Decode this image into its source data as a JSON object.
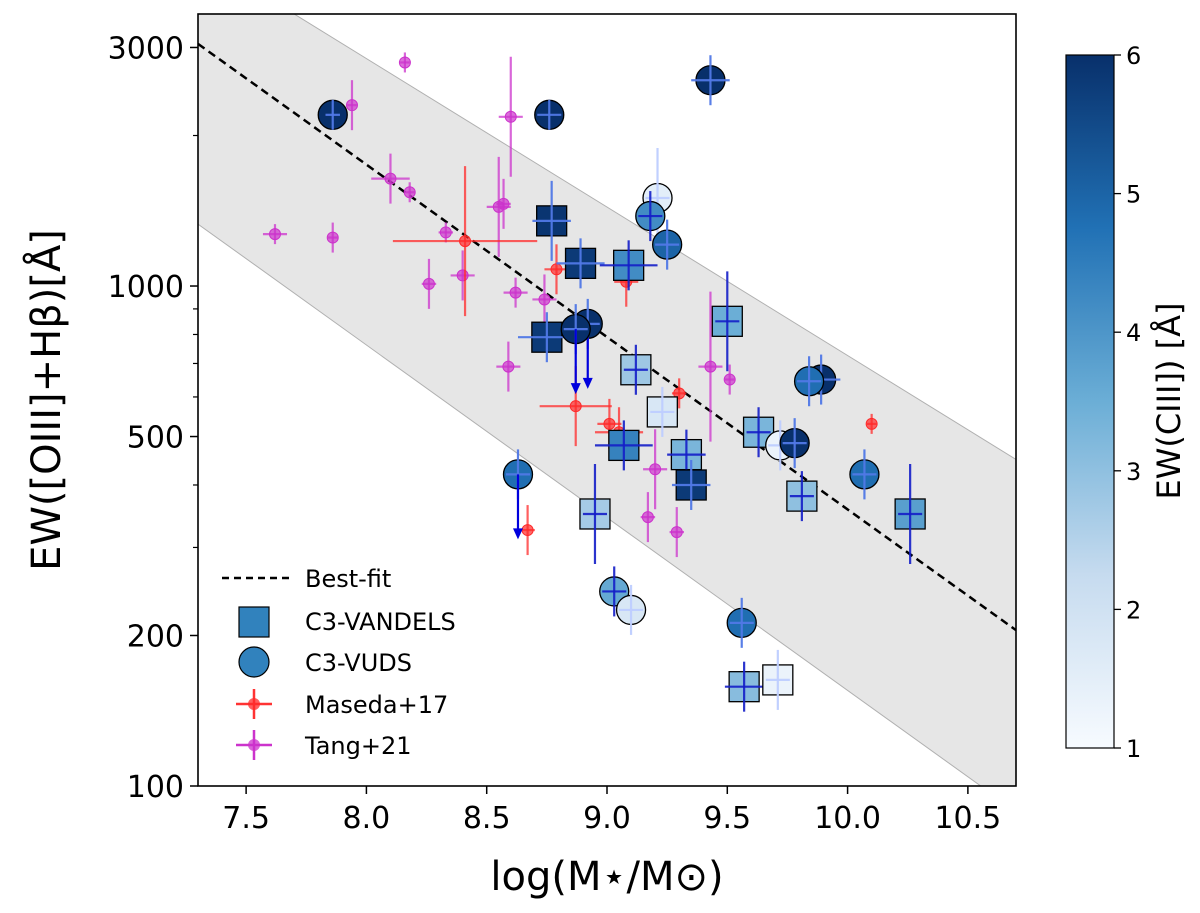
{
  "chart_data": {
    "type": "scatter",
    "xlabel": "log(M⋆/M⊙)",
    "ylabel": "EW([OIII]+Hβ)[Å]",
    "xlim": [
      7.3,
      10.7
    ],
    "ylim": [
      100,
      3500
    ],
    "yscale": "log",
    "x_ticks": [
      7.5,
      8.0,
      8.5,
      9.0,
      9.5,
      10.0,
      10.5
    ],
    "x_tick_labels": [
      "7.5",
      "8.0",
      "8.5",
      "9.0",
      "9.5",
      "10.0",
      "10.5"
    ],
    "y_ticks": [
      100,
      200,
      500,
      1000,
      3000
    ],
    "y_tick_labels": [
      "100",
      "200",
      "500",
      "1000",
      "3000"
    ],
    "colorbar": {
      "label": "EW(CIII]) [Å]",
      "range": [
        1,
        6
      ],
      "ticks": [
        1,
        2,
        3,
        4,
        5,
        6
      ],
      "tick_labels": [
        "1",
        "2",
        "3",
        "4",
        "5",
        "6"
      ],
      "colors": [
        "#f7fbff",
        "#c6dbef",
        "#6baed6",
        "#2171b5",
        "#08306b"
      ]
    },
    "best_fit": {
      "name": "Best-fit",
      "line": [
        [
          7.3,
          3050
        ],
        [
          10.7,
          205
        ]
      ],
      "band_upper": [
        [
          7.3,
          4600
        ],
        [
          10.7,
          450
        ]
      ],
      "band_lower": [
        [
          7.3,
          1330
        ],
        [
          10.7,
          89
        ]
      ]
    },
    "legend": [
      "Best-fit",
      "C3-VANDELS",
      "C3-VUDS",
      "Maseda+17",
      "Tang+21"
    ],
    "legend_position": "lower-left",
    "series": [
      {
        "name": "C3-VANDELS",
        "marker": "square",
        "points": [
          {
            "x": 8.77,
            "y": 1350,
            "c": 5.9,
            "xerr": 0.08,
            "yerr": 0.08
          },
          {
            "x": 8.89,
            "y": 1110,
            "c": 5.8,
            "xerr": 0.1,
            "yerr": 0.05
          },
          {
            "x": 9.09,
            "y": 1100,
            "c": 4.2,
            "xerr": 0.12,
            "yerr": 0.05
          },
          {
            "x": 8.75,
            "y": 790,
            "c": 5.8,
            "xerr": 0.12,
            "yerr": 0.05
          },
          {
            "x": 9.5,
            "y": 850,
            "c": 3.5,
            "xerr": 0.05,
            "yerr": 0.1
          },
          {
            "x": 9.12,
            "y": 680,
            "c": 2.8,
            "xerr": 0.05,
            "yerr": 0.05
          },
          {
            "x": 9.23,
            "y": 560,
            "c": 1.8,
            "xerr": 0.05,
            "yerr": 0.05
          },
          {
            "x": 9.63,
            "y": 510,
            "c": 3.3,
            "xerr": 0.05,
            "yerr": 0.05
          },
          {
            "x": 9.07,
            "y": 480,
            "c": 4.4,
            "xerr": 0.12,
            "yerr": 0.05
          },
          {
            "x": 9.33,
            "y": 460,
            "c": 3.3,
            "xerr": 0.08,
            "yerr": 0.05
          },
          {
            "x": 9.35,
            "y": 400,
            "c": 5.8,
            "xerr": 0.08,
            "yerr": 0.05
          },
          {
            "x": 9.81,
            "y": 380,
            "c": 3.0,
            "xerr": 0.05,
            "yerr": 0.05
          },
          {
            "x": 8.95,
            "y": 350,
            "c": 2.7,
            "xerr": 0.05,
            "yerr": 0.1
          },
          {
            "x": 10.26,
            "y": 350,
            "c": 3.8,
            "xerr": 0.05,
            "yerr": 0.1
          },
          {
            "x": 9.57,
            "y": 158,
            "c": 3.1,
            "xerr": 0.08,
            "yerr": 0.05
          },
          {
            "x": 9.71,
            "y": 163,
            "c": 1.3,
            "xerr": 0.05,
            "yerr": 0.06
          }
        ]
      },
      {
        "name": "C3-VUDS",
        "marker": "circle",
        "points": [
          {
            "x": 7.86,
            "y": 2200,
            "c": 6.0,
            "xerr": 0.03,
            "yerr": 0.03
          },
          {
            "x": 8.76,
            "y": 2200,
            "c": 6.0,
            "xerr": 0.05,
            "yerr": 0.03
          },
          {
            "x": 9.43,
            "y": 2580,
            "c": 6.0,
            "xerr": 0.08,
            "yerr": 0.05
          },
          {
            "x": 9.21,
            "y": 1500,
            "c": 1.5,
            "xerr": 0.05,
            "yerr": 0.1
          },
          {
            "x": 9.18,
            "y": 1380,
            "c": 4.2,
            "xerr": 0.05,
            "yerr": 0.05
          },
          {
            "x": 9.25,
            "y": 1210,
            "c": 5.0,
            "xerr": 0.05,
            "yerr": 0.05
          },
          {
            "x": 8.92,
            "y": 840,
            "c": 6.0,
            "xerr": 0.05,
            "yerr": 0.05,
            "upper_limit": true
          },
          {
            "x": 8.87,
            "y": 820,
            "c": 6.0,
            "xerr": 0.05,
            "yerr": 0.05,
            "upper_limit": true
          },
          {
            "x": 9.89,
            "y": 650,
            "c": 6.0,
            "xerr": 0.08,
            "yerr": 0.05
          },
          {
            "x": 9.84,
            "y": 645,
            "c": 4.8,
            "xerr": 0.05,
            "yerr": 0.05
          },
          {
            "x": 9.72,
            "y": 480,
            "c": 1.3,
            "xerr": 0.05,
            "yerr": 0.05
          },
          {
            "x": 9.78,
            "y": 485,
            "c": 6.0,
            "xerr": 0.05,
            "yerr": 0.05
          },
          {
            "x": 10.07,
            "y": 420,
            "c": 4.8,
            "xerr": 0.05,
            "yerr": 0.05
          },
          {
            "x": 8.63,
            "y": 420,
            "c": 4.8,
            "xerr": 0.05,
            "yerr": 0.05,
            "upper_limit": true
          },
          {
            "x": 9.03,
            "y": 245,
            "c": 3.6,
            "xerr": 0.05,
            "yerr": 0.05
          },
          {
            "x": 9.1,
            "y": 225,
            "c": 1.8,
            "xerr": 0.05,
            "yerr": 0.05
          },
          {
            "x": 9.56,
            "y": 212,
            "c": 4.8,
            "xerr": 0.05,
            "yerr": 0.05
          }
        ]
      },
      {
        "name": "Maseda+17",
        "marker": "small-dot",
        "color": "#ff2a2a",
        "points": [
          {
            "x": 8.41,
            "y": 1230,
            "xerr_lo": 0.3,
            "xerr_hi": 0.3,
            "yerr": 0.15
          },
          {
            "x": 8.79,
            "y": 1080,
            "xerr": 0.05,
            "yerr": 0.05
          },
          {
            "x": 9.08,
            "y": 1020,
            "xerr": 0.05,
            "yerr": 0.05
          },
          {
            "x": 8.87,
            "y": 575,
            "xerr": 0.15,
            "yerr": 0.08
          },
          {
            "x": 9.01,
            "y": 530,
            "xerr": 0.05,
            "yerr": 0.05
          },
          {
            "x": 9.05,
            "y": 510,
            "xerr": 0.1,
            "yerr": 0.05
          },
          {
            "x": 9.3,
            "y": 610,
            "xerr": 0.03,
            "yerr": 0.03
          },
          {
            "x": 10.1,
            "y": 530,
            "xerr": 0.02,
            "yerr": 0.02
          },
          {
            "x": 8.67,
            "y": 325,
            "xerr": 0.03,
            "yerr": 0.05
          }
        ]
      },
      {
        "name": "Tang+21",
        "marker": "small-dot",
        "color": "#cc33cc",
        "points": [
          {
            "x": 8.16,
            "y": 2800,
            "xerr": 0.02,
            "yerr": 0.02
          },
          {
            "x": 7.94,
            "y": 2300,
            "xerr": 0.02,
            "yerr": 0.05
          },
          {
            "x": 8.6,
            "y": 2180,
            "xerr": 0.05,
            "yerr": 0.12
          },
          {
            "x": 8.1,
            "y": 1640,
            "xerr": 0.08,
            "yerr": 0.05
          },
          {
            "x": 8.18,
            "y": 1540,
            "xerr": 0.02,
            "yerr": 0.02
          },
          {
            "x": 8.55,
            "y": 1440,
            "xerr": 0.05,
            "yerr": 0.1
          },
          {
            "x": 8.57,
            "y": 1460,
            "xerr": 0.03,
            "yerr": 0.05
          },
          {
            "x": 7.62,
            "y": 1270,
            "xerr": 0.05,
            "yerr": 0.02
          },
          {
            "x": 7.86,
            "y": 1250,
            "xerr": 0.02,
            "yerr": 0.03
          },
          {
            "x": 8.33,
            "y": 1280,
            "xerr": 0.03,
            "yerr": 0.02
          },
          {
            "x": 8.4,
            "y": 1050,
            "xerr": 0.05,
            "yerr": 0.05
          },
          {
            "x": 8.26,
            "y": 1010,
            "xerr": 0.03,
            "yerr": 0.05
          },
          {
            "x": 8.62,
            "y": 970,
            "xerr": 0.05,
            "yerr": 0.03
          },
          {
            "x": 8.74,
            "y": 940,
            "xerr": 0.05,
            "yerr": 0.05
          },
          {
            "x": 8.59,
            "y": 690,
            "xerr": 0.05,
            "yerr": 0.05
          },
          {
            "x": 9.43,
            "y": 690,
            "xerr": 0.05,
            "yerr": 0.15
          },
          {
            "x": 9.51,
            "y": 650,
            "xerr": 0.02,
            "yerr": 0.03
          },
          {
            "x": 9.2,
            "y": 430,
            "xerr": 0.05,
            "yerr": 0.08
          },
          {
            "x": 9.17,
            "y": 345,
            "xerr": 0.03,
            "yerr": 0.05
          },
          {
            "x": 9.29,
            "y": 322,
            "xerr": 0.03,
            "yerr": 0.05
          }
        ]
      }
    ]
  }
}
